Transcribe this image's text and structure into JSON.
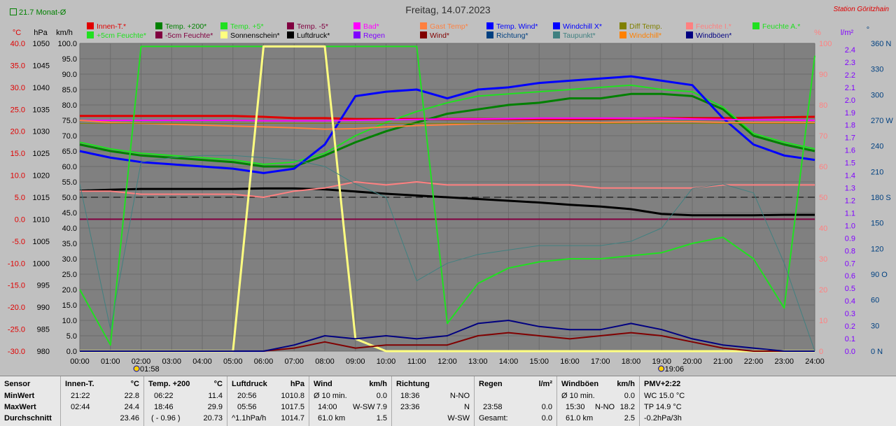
{
  "header": {
    "title": "Freitag, 14.07.2023",
    "station": "Station Göritzhain",
    "average_label": "21.7 Monat-Ø"
  },
  "legend": [
    {
      "label": "Innen-T.*",
      "color": "#e00000"
    },
    {
      "label": "Temp. +200*",
      "color": "#008000"
    },
    {
      "label": "Temp. +5*",
      "color": "#20e020"
    },
    {
      "label": "Temp. -5*",
      "color": "#800040"
    },
    {
      "label": "Bad*",
      "color": "#ff00ff"
    },
    {
      "label": "Gast Temp*",
      "color": "#ff8040"
    },
    {
      "label": "Temp. Wind*",
      "color": "#0000ff"
    },
    {
      "label": "Windchill X*",
      "color": "#0000ff"
    },
    {
      "label": "Diff Temp.",
      "color": "#808000"
    },
    {
      "label": "Feuchte I.*",
      "color": "#ff8080"
    },
    {
      "label": "Feuchte A.*",
      "color": "#20e020"
    },
    {
      "label": "+5cm Feuchte*",
      "color": "#20e020"
    },
    {
      "label": "-5cm Feuchte*",
      "color": "#800040"
    },
    {
      "label": "Sonnenschein*",
      "color": "#ffff80"
    },
    {
      "label": "Luftdruck*",
      "color": "#000000"
    },
    {
      "label": "Regen",
      "color": "#8000ff"
    },
    {
      "label": "Wind*",
      "color": "#800000"
    },
    {
      "label": "Richtung*",
      "color": "#004080"
    },
    {
      "label": "Taupunkt*",
      "color": "#408080"
    },
    {
      "label": "Windchill*",
      "color": "#ff8000"
    },
    {
      "label": "Windböen*",
      "color": "#000080"
    }
  ],
  "axes": {
    "temp_unit": "°C",
    "pressure_unit": "hPa",
    "wind_unit": "km/h",
    "humidity_unit": "%",
    "rain_unit": "l/m²",
    "direction_unit": "°",
    "temp_ticks": [
      "40.0",
      "35.0",
      "30.0",
      "25.0",
      "20.0",
      "15.0",
      "10.0",
      "5.0",
      "0.0",
      "-5.0",
      "-10.0",
      "-15.0",
      "-20.0",
      "-25.0",
      "-30.0"
    ],
    "pressure_ticks": [
      "1050",
      "1045",
      "1040",
      "1035",
      "1030",
      "1025",
      "1020",
      "1015",
      "1010",
      "1005",
      "1000",
      "995",
      "990",
      "985",
      "980"
    ],
    "wind_ticks": [
      "100.0",
      "95.0",
      "90.0",
      "85.0",
      "80.0",
      "75.0",
      "70.0",
      "65.0",
      "60.0",
      "55.0",
      "50.0",
      "45.0",
      "40.0",
      "35.0",
      "30.0",
      "25.0",
      "20.0",
      "15.0",
      "10.0",
      "5.0",
      "0.0"
    ],
    "humidity_ticks": [
      "100",
      "90",
      "80",
      "70",
      "60",
      "50",
      "40",
      "30",
      "20",
      "10",
      "0"
    ],
    "rain_ticks": [
      "2.4",
      "2.3",
      "2.2",
      "2.1",
      "2.0",
      "1.9",
      "1.8",
      "1.7",
      "1.6",
      "1.5",
      "1.4",
      "1.3",
      "1.2",
      "1.1",
      "1.0",
      "0.9",
      "0.8",
      "0.7",
      "0.6",
      "0.5",
      "0.4",
      "0.3",
      "0.2",
      "0.1",
      "0.0"
    ],
    "direction_ticks": [
      "360 N",
      "330",
      "300",
      "270 W",
      "240",
      "210",
      "180 S",
      "150",
      "120",
      "90 O",
      "60",
      "30",
      "0 N"
    ],
    "time_ticks": [
      "00:00",
      "01:00",
      "02:00",
      "03:00",
      "04:00",
      "05:00",
      "06:00",
      "07:00",
      "08:00",
      "09:00",
      "10:00",
      "11:00",
      "12:00",
      "13:00",
      "14:00",
      "15:00",
      "16:00",
      "17:00",
      "18:00",
      "19:00",
      "20:00",
      "21:00",
      "22:00",
      "23:00",
      "24:00"
    ],
    "sunrise": "01:58",
    "sunset": "19:06"
  },
  "chart_data": {
    "type": "line",
    "title": "Freitag, 14.07.2023",
    "x_range": [
      "00:00",
      "24:00"
    ],
    "temp_range": [
      -30,
      40
    ],
    "pressure_range": [
      980,
      1050
    ],
    "wind_range": [
      0,
      100
    ],
    "humidity_range": [
      0,
      100
    ],
    "rain_range": [
      0,
      2.4
    ],
    "direction_range": [
      0,
      360
    ],
    "hours": [
      0,
      1,
      2,
      3,
      4,
      5,
      6,
      7,
      8,
      9,
      10,
      11,
      12,
      13,
      14,
      15,
      16,
      17,
      18,
      19,
      20,
      21,
      22,
      23,
      24
    ],
    "series": [
      {
        "name": "Innen-T.*",
        "color": "#e00000",
        "axis": "temp",
        "width": 3,
        "values": [
          23.5,
          23.5,
          23.5,
          23.5,
          23.5,
          23.5,
          23.3,
          23.0,
          23.0,
          22.8,
          22.8,
          22.8,
          22.8,
          22.8,
          22.8,
          22.8,
          22.8,
          22.8,
          22.9,
          23.0,
          23.0,
          23.0,
          23.1,
          23.2,
          23.3
        ]
      },
      {
        "name": "Temp. +200*",
        "color": "#008000",
        "axis": "temp",
        "width": 3,
        "values": [
          17.0,
          15.5,
          14.5,
          14.0,
          13.5,
          13.0,
          12.0,
          12.0,
          14.5,
          17.5,
          20.0,
          22.0,
          24.0,
          25.0,
          26.0,
          26.5,
          27.5,
          27.5,
          28.5,
          28.5,
          28.0,
          25.0,
          19.0,
          17.0,
          15.5
        ]
      },
      {
        "name": "Temp. +5*",
        "color": "#20e020",
        "axis": "temp",
        "width": 2,
        "values": [
          17.5,
          16.0,
          15.0,
          14.5,
          14.0,
          13.5,
          12.5,
          13.0,
          15.0,
          19.0,
          22.0,
          24.5,
          26.5,
          28.0,
          28.5,
          29.0,
          29.5,
          30.0,
          30.5,
          29.5,
          29.0,
          25.5,
          19.5,
          17.5,
          16.0
        ]
      },
      {
        "name": "Temp. Wind*",
        "color": "#0000ff",
        "axis": "temp",
        "width": 3,
        "values": [
          15.5,
          14.0,
          13.0,
          12.5,
          12.0,
          11.5,
          10.5,
          11.5,
          17.0,
          28.0,
          29.0,
          29.5,
          27.5,
          29.5,
          30.0,
          31.0,
          31.5,
          32.0,
          32.5,
          31.5,
          30.5,
          23.0,
          17.0,
          14.5,
          13.5
        ]
      },
      {
        "name": "Bad*",
        "color": "#ff00ff",
        "axis": "temp",
        "width": 2,
        "values": [
          22.5,
          22.5,
          22.5,
          22.5,
          22.5,
          22.5,
          22.4,
          22.4,
          22.4,
          22.5,
          22.6,
          22.7,
          22.8,
          22.8,
          22.9,
          23.0,
          23.0,
          23.0,
          23.0,
          23.0,
          22.8,
          22.7,
          22.6,
          22.6,
          22.5
        ]
      },
      {
        "name": "Gast Temp*",
        "color": "#ff8040",
        "axis": "temp",
        "width": 2,
        "values": [
          22.5,
          22.0,
          21.8,
          21.6,
          21.4,
          21.2,
          21.0,
          20.8,
          20.5,
          20.6,
          21.0,
          21.3,
          21.5,
          21.7,
          21.8,
          22.0,
          22.0,
          22.0,
          22.1,
          22.2,
          22.2,
          22.0,
          22.0,
          22.0,
          22.0
        ]
      },
      {
        "name": "Diff Temp.",
        "color": "#808000",
        "axis": "temp",
        "width": 1,
        "values": [
          21.8,
          21.8,
          21.8,
          21.8,
          21.8,
          21.8,
          21.8,
          21.8,
          21.8,
          21.8,
          21.8,
          21.8,
          21.8,
          21.8,
          21.8,
          21.8,
          21.8,
          21.8,
          21.8,
          21.8,
          21.8,
          21.8,
          21.8,
          21.8,
          21.8
        ]
      },
      {
        "name": "Luftdruck*",
        "color": "#000000",
        "axis": "pressure",
        "width": 3,
        "values": [
          1016.5,
          1016.7,
          1016.9,
          1016.9,
          1016.9,
          1016.9,
          1017.0,
          1017.0,
          1016.8,
          1016.3,
          1015.8,
          1015.4,
          1015.0,
          1014.6,
          1014.2,
          1013.8,
          1013.3,
          1012.9,
          1012.3,
          1011.2,
          1010.9,
          1010.9,
          1010.9,
          1011.0,
          1011.0
        ]
      },
      {
        "name": "Feuchte I.*",
        "color": "#ff8080",
        "axis": "humidity",
        "width": 2,
        "values": [
          52,
          52,
          51,
          51,
          51,
          51,
          50,
          52,
          53,
          55,
          54,
          55,
          54,
          54,
          54,
          54,
          54,
          53,
          53,
          53,
          53,
          54,
          54,
          54,
          54
        ]
      },
      {
        "name": "Feuchte A.*",
        "color": "#20e020",
        "axis": "humidity",
        "width": 2,
        "values": [
          20,
          2,
          99,
          99,
          99,
          99,
          99,
          99,
          99,
          99,
          99,
          99,
          9,
          22,
          27,
          29,
          30,
          30,
          31,
          32,
          35,
          37,
          30,
          14,
          96
        ]
      },
      {
        "name": "Sonnenschein*",
        "color": "#ffff80",
        "axis": "wind",
        "width": 3,
        "values": [
          0,
          0,
          0,
          0,
          0,
          0,
          99,
          99,
          99,
          4,
          0,
          0,
          0,
          0,
          0,
          0,
          0,
          0,
          0,
          0,
          0,
          0,
          0,
          0,
          0
        ]
      },
      {
        "name": "Wind*",
        "color": "#800000",
        "axis": "wind",
        "width": 2,
        "values": [
          0,
          0,
          0,
          0,
          0,
          0,
          0,
          1,
          3,
          1,
          2,
          2,
          2,
          5,
          6,
          5,
          4,
          5,
          6,
          5,
          3,
          1,
          0,
          0,
          0
        ]
      },
      {
        "name": "Windböen*",
        "color": "#000080",
        "axis": "wind",
        "width": 2,
        "values": [
          0,
          0,
          0,
          0,
          0,
          0,
          0,
          2,
          5,
          4,
          5,
          4,
          5,
          9,
          10,
          8,
          7,
          7,
          9,
          7,
          4,
          2,
          1,
          0,
          0
        ]
      },
      {
        "name": "Taupunkt*",
        "color": "#408080",
        "axis": "temp",
        "width": 1,
        "values": [
          8.0,
          -25.0,
          13.0,
          14.0,
          14.5,
          14.5,
          14.0,
          13.5,
          12.0,
          8.0,
          5.0,
          -14.0,
          -10.0,
          -8.0,
          -7.0,
          -6.0,
          -6.0,
          -6.0,
          -5.0,
          -2.0,
          7.0,
          8.0,
          6.0,
          -10.0,
          -30.0
        ]
      }
    ]
  },
  "stats": {
    "sensor": {
      "title": "Sensor",
      "rows": [
        "MinWert",
        "MaxWert",
        "Durchschnitt"
      ]
    },
    "innen": {
      "title": "Innen-T.",
      "unit": "°C",
      "rows": [
        [
          "21:22",
          "22.8"
        ],
        [
          "02:44",
          "24.4"
        ],
        [
          "",
          "23.46"
        ]
      ]
    },
    "temp200": {
      "title": "Temp. +200",
      "unit": "°C",
      "rows": [
        [
          "06:22",
          "11.4"
        ],
        [
          "18:46",
          "29.9"
        ],
        [
          "( - 0.96 )",
          "20.73"
        ]
      ]
    },
    "luftdruck": {
      "title": "Luftdruck",
      "unit": "hPa",
      "rows": [
        [
          "20:56",
          "1010.8"
        ],
        [
          "05:56",
          "1017.5"
        ],
        [
          "^1.1hPa/h",
          "1014.7"
        ]
      ]
    },
    "wind": {
      "title": "Wind",
      "unit": "km/h",
      "rows": [
        [
          "Ø 10 min.",
          "",
          "0.0"
        ],
        [
          "14:00",
          "W-SW",
          "7.9"
        ],
        [
          "61.0 km",
          "",
          "1.5"
        ]
      ]
    },
    "richtung": {
      "title": "Richtung",
      "unit": "",
      "rows": [
        [
          "18:36",
          "N-NO"
        ],
        [
          "23:36",
          "N"
        ],
        [
          "",
          "W-SW"
        ]
      ]
    },
    "regen": {
      "title": "Regen",
      "unit": "l/m²",
      "rows": [
        [
          "",
          ""
        ],
        [
          "23:58",
          "0.0"
        ],
        [
          "Gesamt:",
          "0.0"
        ]
      ]
    },
    "boeen": {
      "title": "Windböen",
      "unit": "km/h",
      "rows": [
        [
          "Ø 10 min.",
          "",
          "0.0"
        ],
        [
          "15:30",
          "N-NO",
          "18.2"
        ],
        [
          "61.0 km",
          "",
          "2.5"
        ]
      ]
    },
    "pmv": {
      "title": "PMV+2:22",
      "rows": [
        "WC 15.0 °C",
        "TP 14.9 °C",
        "-0.2hPa/3h"
      ]
    }
  }
}
